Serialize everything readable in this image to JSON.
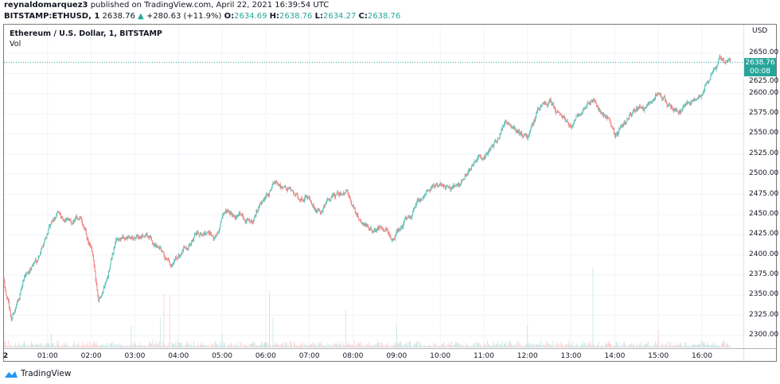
{
  "header": {
    "publisher": "reynaldomarquez3",
    "published_text": "published on TradingView.com, April 22, 2021 16:39:54 UTC",
    "symbol": "BITSTAMP:ETHUSD, 1",
    "last": "2638.76",
    "change": "+280.63 (+11.9%)",
    "o_label": "O:",
    "o": "2634.69",
    "h_label": "H:",
    "h": "2638.76",
    "l_label": "L:",
    "l": "2634.27",
    "c_label": "C:",
    "c": "2638.76"
  },
  "legend": {
    "title": "Ethereum / U.S. Dollar, 1, BITSTAMP",
    "volume": "Vol"
  },
  "price_axis": {
    "currency": "USD",
    "ticks": [
      "2650.00",
      "2625.00",
      "2600.00",
      "2575.00",
      "2550.00",
      "2525.00",
      "2500.00",
      "2475.00",
      "2450.00",
      "2425.00",
      "2400.00",
      "2375.00",
      "2350.00",
      "2325.00",
      "2300.00"
    ],
    "last_price_label": "2638.76",
    "countdown": "00:08"
  },
  "time_axis": {
    "ticks": [
      "2",
      "01:00",
      "02:00",
      "03:00",
      "04:00",
      "05:00",
      "06:00",
      "07:00",
      "08:00",
      "09:00",
      "10:00",
      "11:00",
      "12:00",
      "13:00",
      "14:00",
      "15:00",
      "16:00"
    ]
  },
  "footer": {
    "brand": "TradingView"
  },
  "colors": {
    "up": "#26a69a",
    "down": "#ef5350",
    "up_candle": "#5cbfb3",
    "down_candle": "#f08080",
    "grid": "#f0f3fa"
  },
  "chart_data": {
    "type": "candlestick",
    "interval": "1 minute",
    "ylim": [
      2290,
      2660
    ],
    "xlim": [
      "00:00",
      "16:50"
    ],
    "grid": true,
    "price_path": [
      [
        "00:00",
        2370
      ],
      [
        "00:10",
        2320
      ],
      [
        "00:20",
        2345
      ],
      [
        "00:30",
        2375
      ],
      [
        "00:45",
        2395
      ],
      [
        "01:00",
        2430
      ],
      [
        "01:15",
        2450
      ],
      [
        "01:30",
        2440
      ],
      [
        "01:45",
        2445
      ],
      [
        "02:00",
        2405
      ],
      [
        "02:10",
        2345
      ],
      [
        "02:20",
        2370
      ],
      [
        "02:35",
        2420
      ],
      [
        "03:00",
        2420
      ],
      [
        "03:15",
        2425
      ],
      [
        "03:30",
        2410
      ],
      [
        "03:50",
        2380
      ],
      [
        "04:10",
        2410
      ],
      [
        "04:30",
        2430
      ],
      [
        "04:50",
        2420
      ],
      [
        "05:00",
        2445
      ],
      [
        "05:20",
        2450
      ],
      [
        "05:40",
        2445
      ],
      [
        "06:00",
        2470
      ],
      [
        "06:15",
        2492
      ],
      [
        "06:30",
        2480
      ],
      [
        "06:45",
        2470
      ],
      [
        "07:00",
        2475
      ],
      [
        "07:15",
        2450
      ],
      [
        "07:30",
        2470
      ],
      [
        "07:50",
        2480
      ],
      [
        "08:00",
        2460
      ],
      [
        "08:10",
        2440
      ],
      [
        "08:30",
        2430
      ],
      [
        "08:45",
        2435
      ],
      [
        "08:55",
        2418
      ],
      [
        "09:10",
        2440
      ],
      [
        "09:30",
        2465
      ],
      [
        "09:50",
        2490
      ],
      [
        "10:00",
        2485
      ],
      [
        "10:15",
        2478
      ],
      [
        "10:30",
        2490
      ],
      [
        "10:50",
        2520
      ],
      [
        "11:00",
        2520
      ],
      [
        "11:20",
        2545
      ],
      [
        "11:30",
        2570
      ],
      [
        "11:45",
        2555
      ],
      [
        "12:00",
        2545
      ],
      [
        "12:15",
        2580
      ],
      [
        "12:30",
        2590
      ],
      [
        "12:45",
        2575
      ],
      [
        "13:00",
        2560
      ],
      [
        "13:15",
        2580
      ],
      [
        "13:30",
        2590
      ],
      [
        "13:50",
        2570
      ],
      [
        "14:00",
        2548
      ],
      [
        "14:15",
        2565
      ],
      [
        "14:30",
        2580
      ],
      [
        "14:50",
        2585
      ],
      [
        "15:00",
        2603
      ],
      [
        "15:15",
        2585
      ],
      [
        "15:30",
        2578
      ],
      [
        "15:45",
        2590
      ],
      [
        "16:00",
        2605
      ],
      [
        "16:15",
        2625
      ],
      [
        "16:25",
        2642
      ],
      [
        "16:39",
        2638.76
      ]
    ],
    "volume_spikes_relative": [
      [
        "01:05",
        0.17
      ],
      [
        "02:55",
        0.27
      ],
      [
        "03:35",
        0.37
      ],
      [
        "03:40",
        0.67
      ],
      [
        "03:48",
        0.65
      ],
      [
        "05:00",
        0.17
      ],
      [
        "06:05",
        0.72
      ],
      [
        "06:10",
        0.37
      ],
      [
        "07:50",
        0.47
      ],
      [
        "09:00",
        0.27
      ],
      [
        "12:00",
        0.27
      ],
      [
        "13:30",
        1.0
      ],
      [
        "15:00",
        0.22
      ]
    ]
  }
}
